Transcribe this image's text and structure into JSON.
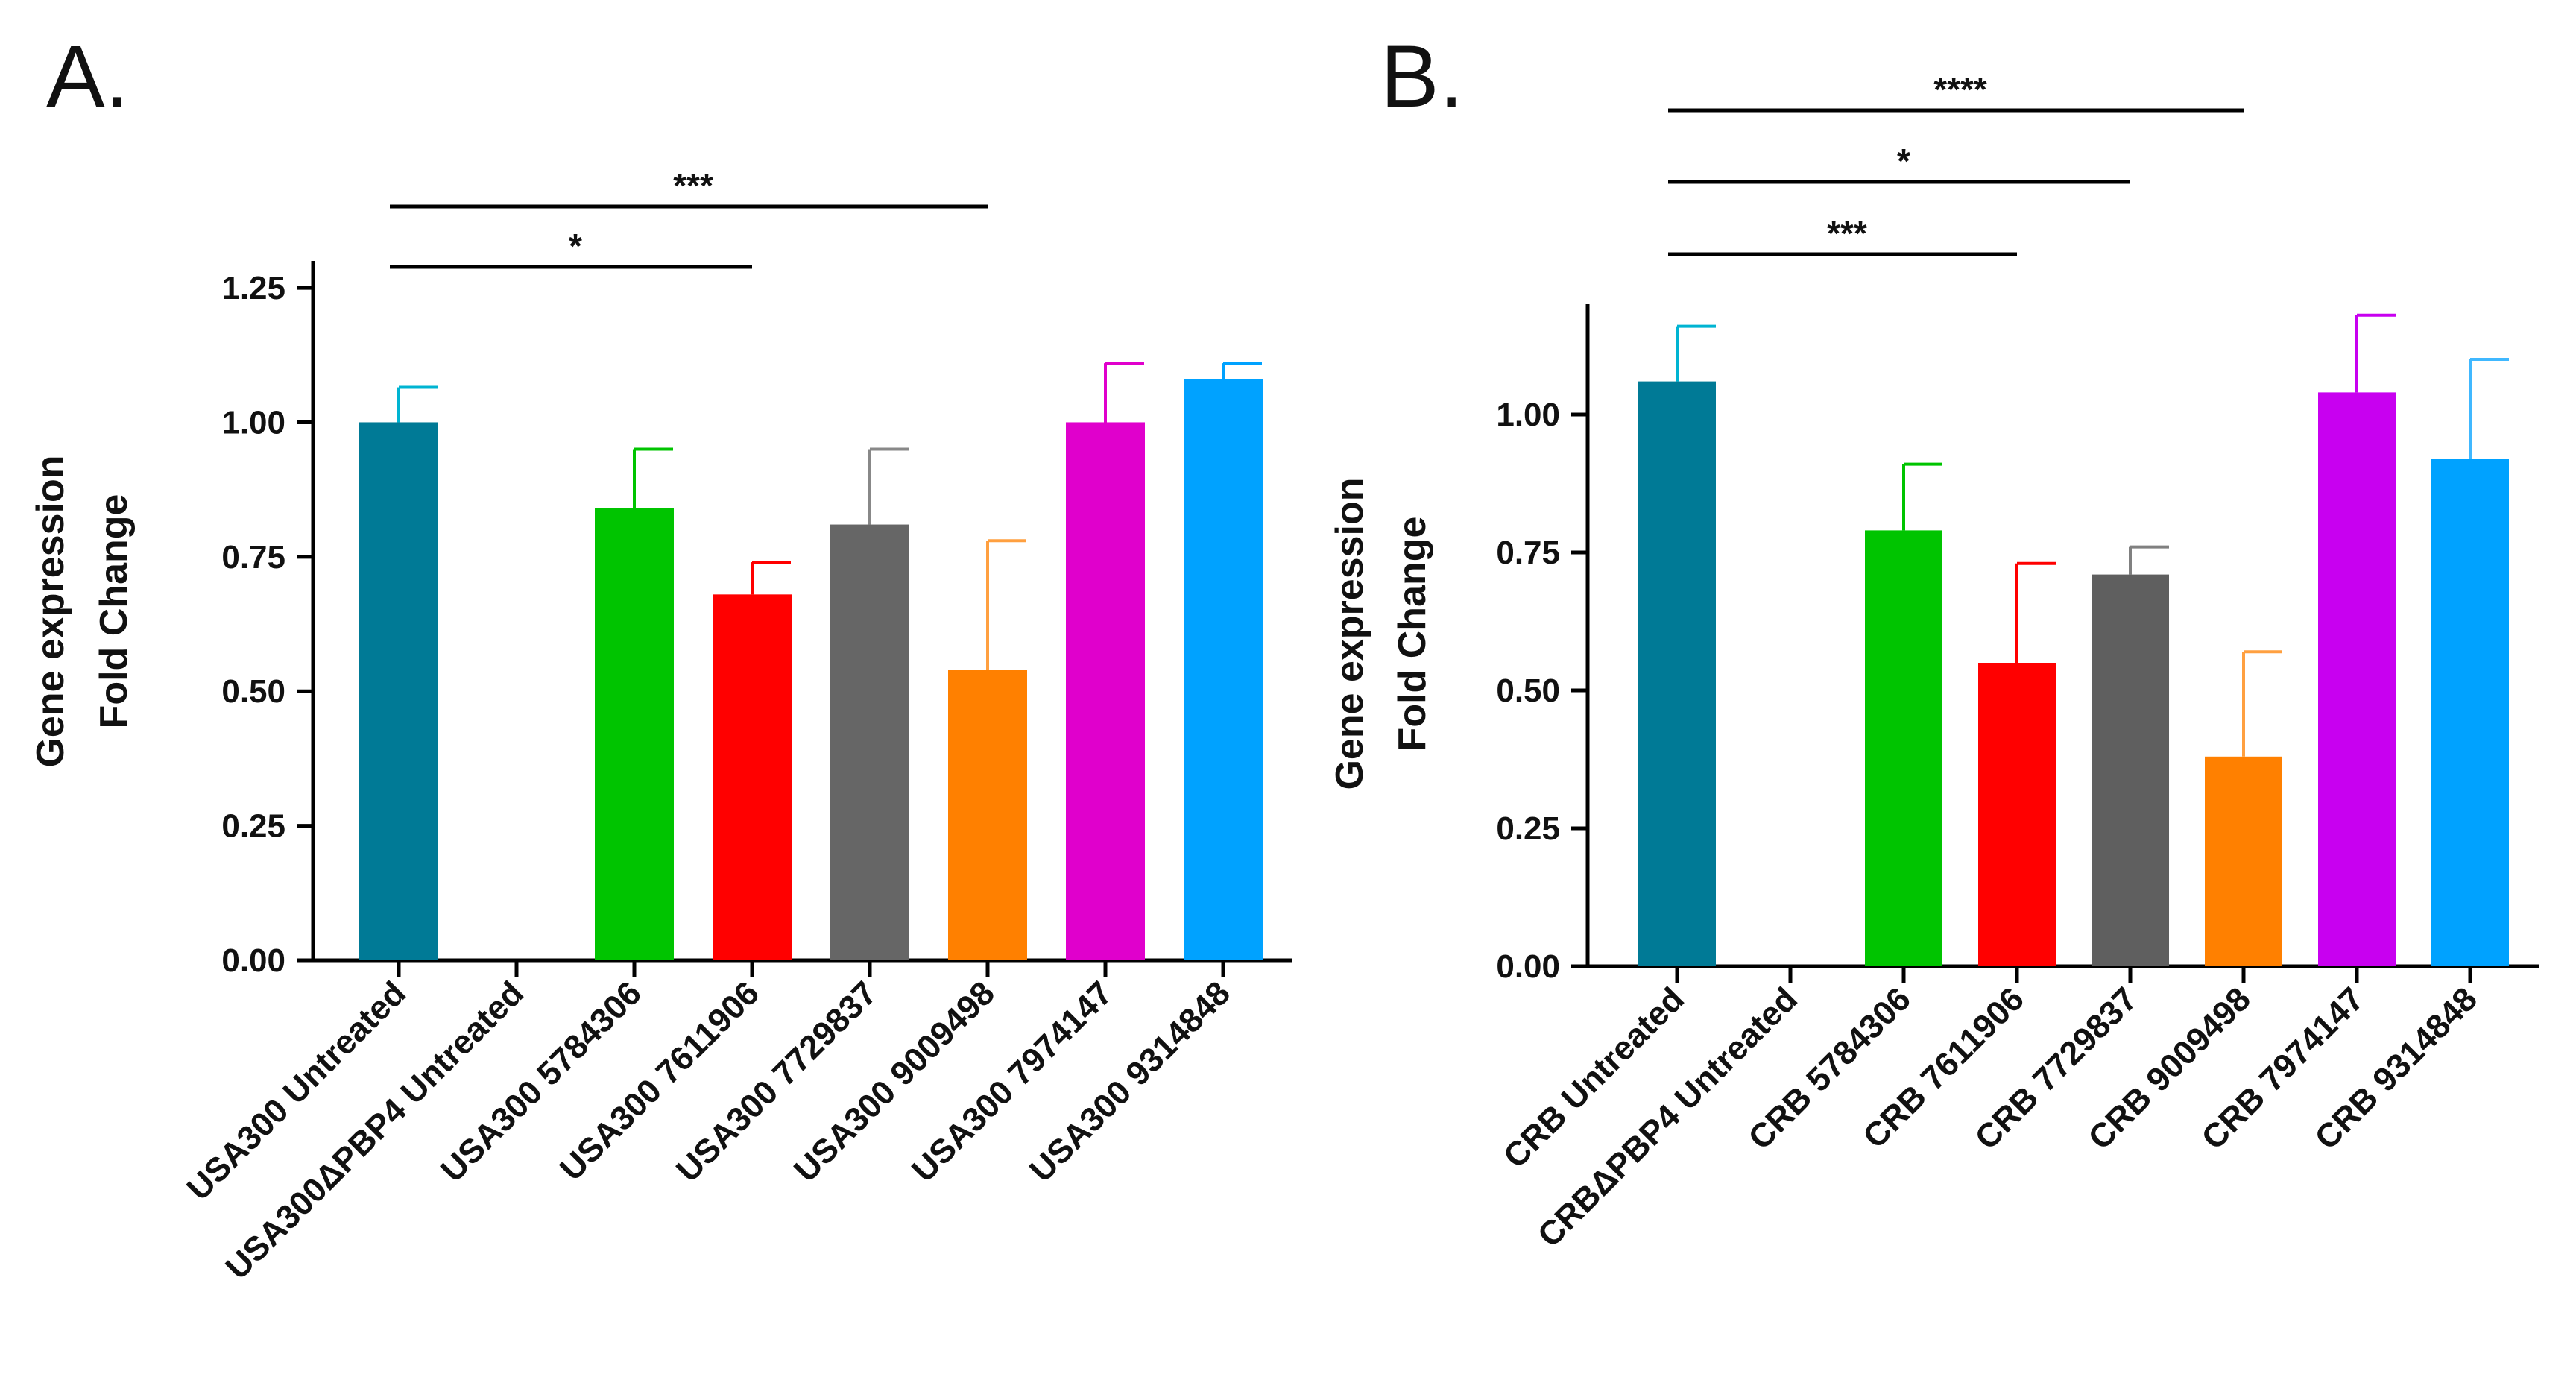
{
  "chart_data": [
    {
      "type": "bar",
      "panel_label": "A.",
      "ylabel_lines": [
        "Gene expression",
        "Fold  Change"
      ],
      "ylim": [
        0,
        1.3
      ],
      "yticks": [
        0.0,
        0.25,
        0.5,
        0.75,
        1.0,
        1.25
      ],
      "ytick_labels": [
        "0.00",
        "0.25",
        "0.50",
        "0.75",
        "1.00",
        "1.25"
      ],
      "categories": [
        "USA300 Untreated",
        "USA300ΔPBP4 Untreated",
        "USA300 5784306",
        "USA300 7611906",
        "USA300 7729837",
        "USA300 9009498",
        "USA300 7974147",
        "USA300 9314848"
      ],
      "values": [
        1.0,
        0.0,
        0.84,
        0.68,
        0.81,
        0.54,
        1.0,
        1.08
      ],
      "errors": [
        0.065,
        0.0,
        0.11,
        0.06,
        0.14,
        0.24,
        0.11,
        0.03
      ],
      "colors": [
        "#007a96",
        "#007a96",
        "#00c400",
        "#ff0000",
        "#666666",
        "#ff8000",
        "#e000cc",
        "#00a2ff"
      ],
      "errorbar_colors": [
        "#00b4d2",
        "#00b4d2",
        "#00c400",
        "#ff0000",
        "#888888",
        "#ffa040",
        "#e000cc",
        "#00a2ff"
      ],
      "significance": [
        {
          "from": 0,
          "to": 3,
          "label": "*"
        },
        {
          "from": 0,
          "to": 5,
          "label": "***"
        }
      ]
    },
    {
      "type": "bar",
      "panel_label": "B.",
      "ylabel_lines": [
        "Gene expression",
        "Fold  Change"
      ],
      "ylim": [
        0,
        1.2
      ],
      "yticks": [
        0.0,
        0.25,
        0.5,
        0.75,
        1.0
      ],
      "ytick_labels": [
        "0.00",
        "0.25",
        "0.50",
        "0.75",
        "1.00"
      ],
      "categories": [
        "CRB Untreated",
        "CRBΔPBP4 Untreated",
        "CRB 5784306",
        "CRB 7611906",
        "CRB 7729837",
        "CRB 9009498",
        "CRB 7974147",
        "CRB 9314848"
      ],
      "values": [
        1.06,
        0.0,
        0.79,
        0.55,
        0.71,
        0.38,
        1.04,
        0.92
      ],
      "errors": [
        0.1,
        0.0,
        0.12,
        0.18,
        0.05,
        0.19,
        0.14,
        0.18
      ],
      "colors": [
        "#007a96",
        "#007a96",
        "#00c400",
        "#ff0000",
        "#5f5f5f",
        "#ff8000",
        "#c800f0",
        "#00a2ff"
      ],
      "errorbar_colors": [
        "#00b4d2",
        "#00b4d2",
        "#00c400",
        "#ff0000",
        "#808080",
        "#ffa040",
        "#c800f0",
        "#40b8ff"
      ],
      "significance": [
        {
          "from": 0,
          "to": 3,
          "label": "***"
        },
        {
          "from": 0,
          "to": 4,
          "label": "*"
        },
        {
          "from": 0,
          "to": 5,
          "label": "****"
        }
      ]
    }
  ]
}
